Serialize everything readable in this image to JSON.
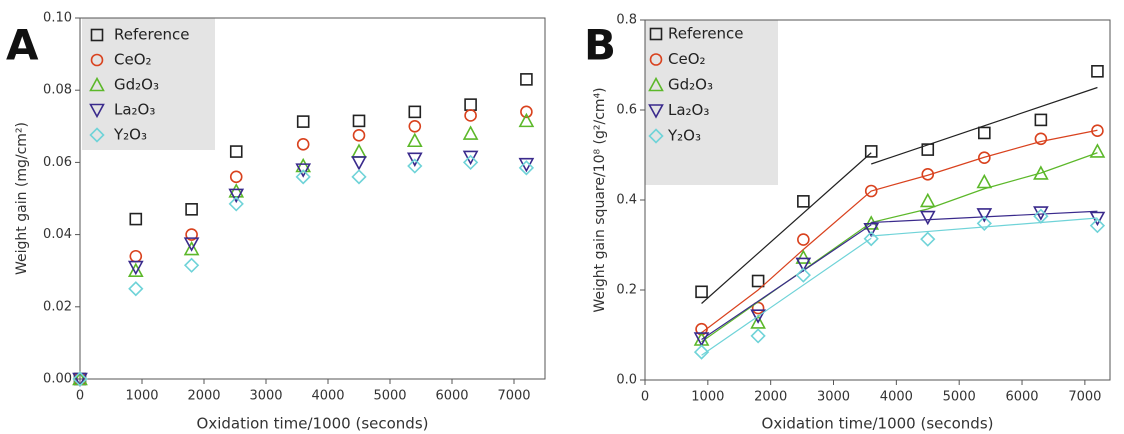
{
  "chart_data": [
    {
      "type": "scatter",
      "panel": "A",
      "xlabel": "Oxidation time/1000 (seconds)",
      "ylabel": "Weight gain (mg/cm²)",
      "x": [
        0,
        900,
        1800,
        2520,
        3600,
        4500,
        5400,
        6300,
        7200
      ],
      "xlim": [
        0,
        7500
      ],
      "ylim": [
        0,
        0.1
      ],
      "xticks": [
        0,
        1000,
        2000,
        3000,
        4000,
        5000,
        6000,
        7000
      ],
      "yticks": [
        {
          "value": 0,
          "label": "0.00"
        },
        {
          "value": 0.02,
          "label": "0.02"
        },
        {
          "value": 0.04,
          "label": "0.04"
        },
        {
          "value": 0.06,
          "label": "0.06"
        },
        {
          "value": 0.08,
          "label": "0.08"
        },
        {
          "value": 0.1,
          "label": "0.10"
        }
      ],
      "series": [
        {
          "name": "Reference",
          "color": "#222222",
          "marker": "square",
          "values": [
            0,
            0.0443,
            0.047,
            0.063,
            0.0713,
            0.0715,
            0.074,
            0.076,
            0.083
          ]
        },
        {
          "name": "CeO₂",
          "color": "#d9421e",
          "marker": "circle",
          "values": [
            0,
            0.034,
            0.04,
            0.056,
            0.065,
            0.0675,
            0.07,
            0.073,
            0.074
          ]
        },
        {
          "name": "Gd₂O₃",
          "color": "#5cb82a",
          "marker": "triangle",
          "values": [
            0,
            0.03,
            0.036,
            0.052,
            0.059,
            0.063,
            0.066,
            0.068,
            0.0715
          ]
        },
        {
          "name": "La₂O₃",
          "color": "#3a2a8c",
          "marker": "triangle-down",
          "values": [
            0,
            0.031,
            0.0375,
            0.051,
            0.058,
            0.06,
            0.061,
            0.0615,
            0.0595
          ]
        },
        {
          "name": "Y₂O₃",
          "color": "#6fd3d8",
          "marker": "diamond",
          "values": [
            0,
            0.025,
            0.0315,
            0.0485,
            0.056,
            0.056,
            0.059,
            0.06,
            0.0585
          ]
        }
      ]
    },
    {
      "type": "scatter",
      "panel": "B",
      "xlabel": "Oxidation time/1000 (seconds)",
      "ylabel": "Weight gain square/10⁸ (g²/cm⁴)",
      "x": [
        900,
        1800,
        2520,
        3600,
        4500,
        5400,
        6300,
        7200
      ],
      "xlim": [
        0,
        7400
      ],
      "ylim": [
        0,
        0.8
      ],
      "xticks": [
        0,
        1000,
        2000,
        3000,
        4000,
        5000,
        6000,
        7000
      ],
      "yticks": [
        {
          "value": 0,
          "label": "0.0"
        },
        {
          "value": 0.2,
          "label": "0.2"
        },
        {
          "value": 0.4,
          "label": "0.4"
        },
        {
          "value": 0.6,
          "label": "0.6"
        },
        {
          "value": 0.8,
          "label": "0.8"
        }
      ],
      "series": [
        {
          "name": "Reference",
          "color": "#222222",
          "marker": "square",
          "values": [
            0.196,
            0.22,
            0.397,
            0.508,
            0.512,
            0.549,
            0.578,
            0.686
          ],
          "fit_x": [
            900,
            3600,
            null,
            3600,
            7200
          ],
          "fit_y": [
            0.17,
            0.505,
            null,
            0.48,
            0.65
          ]
        },
        {
          "name": "CeO₂",
          "color": "#d9421e",
          "marker": "circle",
          "values": [
            0.113,
            0.16,
            0.312,
            0.42,
            0.457,
            0.494,
            0.536,
            0.554
          ],
          "fit_x": [
            900,
            1800,
            2520,
            3600,
            4500,
            5400,
            6300,
            7200
          ],
          "fit_y": [
            0.105,
            0.2,
            0.29,
            0.42,
            0.455,
            0.495,
            0.53,
            0.555
          ]
        },
        {
          "name": "Gd₂O₃",
          "color": "#5cb82a",
          "marker": "triangle",
          "values": [
            0.09,
            0.128,
            0.272,
            0.348,
            0.398,
            0.44,
            0.459,
            0.508
          ],
          "fit_x": [
            900,
            3600,
            4500,
            5400,
            6300,
            7200
          ],
          "fit_y": [
            0.085,
            0.35,
            0.38,
            0.425,
            0.46,
            0.505
          ]
        },
        {
          "name": "La₂O₃",
          "color": "#3a2a8c",
          "marker": "triangle-down",
          "values": [
            0.092,
            0.143,
            0.258,
            0.335,
            0.362,
            0.368,
            0.372,
            0.36
          ],
          "fit_x": [
            900,
            3600,
            null,
            3600,
            7200
          ],
          "fit_y": [
            0.09,
            0.345,
            null,
            0.35,
            0.375
          ]
        },
        {
          "name": "Y₂O₃",
          "color": "#6fd3d8",
          "marker": "diamond",
          "values": [
            0.062,
            0.098,
            0.233,
            0.314,
            0.313,
            0.348,
            0.364,
            0.343
          ],
          "fit_x": [
            900,
            3600,
            null,
            3600,
            7200
          ],
          "fit_y": [
            0.055,
            0.315,
            null,
            0.32,
            0.36
          ]
        }
      ]
    }
  ]
}
